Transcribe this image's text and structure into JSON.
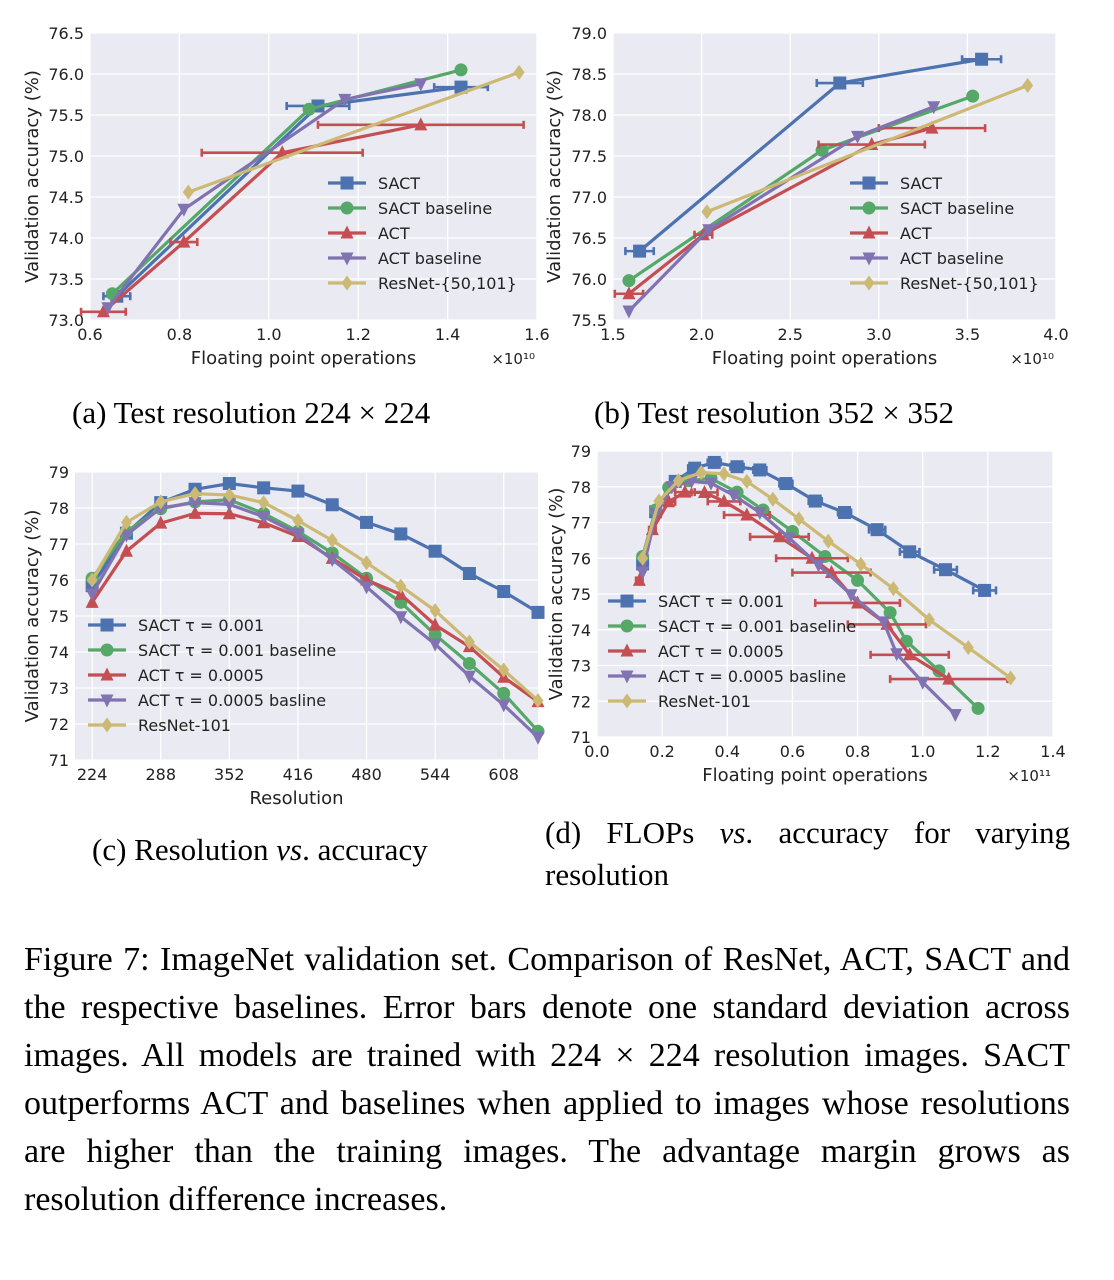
{
  "colors": {
    "SACT": "#4c72b0",
    "SACT baseline": "#55a868",
    "ACT": "#c44e52",
    "ACT baseline": "#8172b2",
    "ResNet": "#ccb974",
    "plot_bg": "#eaeaf2"
  },
  "captions": {
    "a": "(a) Test resolution 224 × 224",
    "b": "(b) Test resolution 352 × 352",
    "c_prefix": "(c) Resolution ",
    "c_vs": "vs",
    "c_suffix": ". accuracy",
    "d_prefix": "(d) FLOPs ",
    "d_vs": "vs",
    "d_suffix": ". accuracy for varying",
    "d_line2": "resolution"
  },
  "figure_caption": "Figure 7: ImageNet validation set. Comparison of ResNet, ACT, SACT and the respective baselines. Error bars denote one standard deviation across images. All models are trained with 224 × 224 resolution images. SACT outperforms ACT and baselines when applied to images whose resolutions are higher than the training images. The advantage margin grows as resolution difference increases.",
  "chart_data": [
    {
      "id": "a",
      "type": "line",
      "xlabel": "Floating point operations",
      "ylabel": "Validation accuracy (%)",
      "exponent_label": "×10¹⁰",
      "xlim": [
        0.6,
        1.6
      ],
      "ylim": [
        73.0,
        76.5
      ],
      "xticks": [
        0.6,
        0.8,
        1.0,
        1.2,
        1.4,
        1.6
      ],
      "xtick_labels": [
        "0.6",
        "0.8",
        "1.0",
        "1.2",
        "1.4",
        "1.6"
      ],
      "yticks": [
        73.0,
        73.5,
        74.0,
        74.5,
        75.0,
        75.5,
        76.0,
        76.5
      ],
      "ytick_labels": [
        "73.0",
        "73.5",
        "74.0",
        "74.5",
        "75.0",
        "75.5",
        "76.0",
        "76.5"
      ],
      "legend": "lower-right",
      "series": [
        {
          "name": "SACT",
          "marker": "square",
          "x": [
            0.66,
            1.11,
            1.43
          ],
          "y": [
            73.29,
            75.61,
            75.84
          ],
          "xerr": [
            0.03,
            0.07,
            0.06
          ]
        },
        {
          "name": "SACT baseline",
          "marker": "circle",
          "x": [
            0.65,
            1.09,
            1.43
          ],
          "y": [
            73.32,
            75.57,
            76.05
          ]
        },
        {
          "name": "ACT",
          "marker": "triangle-up",
          "x": [
            0.63,
            0.81,
            1.03,
            1.34
          ],
          "y": [
            73.1,
            73.95,
            75.04,
            75.38
          ],
          "xerr": [
            0.05,
            0.03,
            0.18,
            0.23
          ]
        },
        {
          "name": "ACT baseline",
          "marker": "triangle-down",
          "x": [
            0.64,
            0.81,
            1.17,
            1.34
          ],
          "y": [
            73.15,
            74.35,
            75.69,
            75.88
          ]
        },
        {
          "name": "ResNet-{50,101}",
          "marker": "diamond",
          "x": [
            0.82,
            1.56
          ],
          "y": [
            74.56,
            76.02
          ]
        }
      ]
    },
    {
      "id": "b",
      "type": "line",
      "xlabel": "Floating point operations",
      "ylabel": "Validation accuracy (%)",
      "exponent_label": "×10¹⁰",
      "xlim": [
        1.5,
        4.0
      ],
      "ylim": [
        75.5,
        79.0
      ],
      "xticks": [
        1.5,
        2.0,
        2.5,
        3.0,
        3.5,
        4.0
      ],
      "xtick_labels": [
        "1.5",
        "2.0",
        "2.5",
        "3.0",
        "3.5",
        "4.0"
      ],
      "yticks": [
        75.5,
        76.0,
        76.5,
        77.0,
        77.5,
        78.0,
        78.5,
        79.0
      ],
      "ytick_labels": [
        "75.5",
        "76.0",
        "76.5",
        "77.0",
        "77.5",
        "78.0",
        "78.5",
        "79.0"
      ],
      "legend": "lower-right",
      "series": [
        {
          "name": "SACT",
          "marker": "square",
          "x": [
            1.65,
            2.78,
            3.58
          ],
          "y": [
            76.34,
            78.39,
            78.68
          ],
          "xerr": [
            0.08,
            0.13,
            0.11
          ]
        },
        {
          "name": "SACT baseline",
          "marker": "circle",
          "x": [
            1.59,
            2.68,
            3.53
          ],
          "y": [
            75.98,
            77.57,
            78.23
          ]
        },
        {
          "name": "ACT",
          "marker": "triangle-up",
          "x": [
            1.59,
            2.01,
            2.96,
            3.3
          ],
          "y": [
            75.82,
            76.54,
            77.64,
            77.84
          ],
          "xerr": [
            0.08,
            0.05,
            0.3,
            0.3
          ]
        },
        {
          "name": "ACT baseline",
          "marker": "triangle-down",
          "x": [
            1.59,
            2.04,
            2.88,
            3.31
          ],
          "y": [
            75.61,
            76.6,
            77.74,
            78.1
          ]
        },
        {
          "name": "ResNet-{50,101}",
          "marker": "diamond",
          "x": [
            2.03,
            3.84
          ],
          "y": [
            76.82,
            78.36
          ]
        }
      ]
    },
    {
      "id": "c",
      "type": "line",
      "xlabel": "Resolution",
      "ylabel": "Validation accuracy (%)",
      "exponent_label": "",
      "xlim": [
        208,
        640
      ],
      "ylim": [
        71,
        79
      ],
      "xticks": [
        224,
        288,
        352,
        416,
        480,
        544,
        608
      ],
      "xtick_labels": [
        "224",
        "288",
        "352",
        "416",
        "480",
        "544",
        "608"
      ],
      "yticks": [
        71,
        72,
        73,
        74,
        75,
        76,
        77,
        78,
        79
      ],
      "ytick_labels": [
        "71",
        "72",
        "73",
        "74",
        "75",
        "76",
        "77",
        "78",
        "79"
      ],
      "legend": "lower-left",
      "series": [
        {
          "name": "SACT τ = 0.001",
          "marker": "square",
          "x": [
            224,
            256,
            288,
            320,
            352,
            384,
            416,
            448,
            480,
            512,
            544,
            576,
            608,
            640
          ],
          "y": [
            75.84,
            77.3,
            78.15,
            78.52,
            78.68,
            78.56,
            78.47,
            78.09,
            77.6,
            77.28,
            76.8,
            76.18,
            75.68,
            75.1
          ]
        },
        {
          "name": "SACT τ = 0.001 baseline",
          "marker": "circle",
          "x": [
            224,
            256,
            288,
            320,
            352,
            384,
            416,
            448,
            480,
            512,
            544,
            576,
            608,
            640
          ],
          "y": [
            76.05,
            77.35,
            77.98,
            78.17,
            78.23,
            77.85,
            77.35,
            76.75,
            76.05,
            75.38,
            74.48,
            73.68,
            72.85,
            71.8
          ]
        },
        {
          "name": "ACT τ = 0.0005",
          "marker": "triangle-up",
          "x": [
            224,
            256,
            288,
            320,
            352,
            384,
            416,
            448,
            480,
            512,
            544,
            576,
            608,
            640
          ],
          "y": [
            75.38,
            76.8,
            77.58,
            77.85,
            77.84,
            77.59,
            77.21,
            76.6,
            76.0,
            75.6,
            74.75,
            74.15,
            73.3,
            72.62
          ]
        },
        {
          "name": "ACT τ = 0.0005 basline",
          "marker": "triangle-down",
          "x": [
            224,
            256,
            288,
            320,
            352,
            384,
            416,
            448,
            480,
            512,
            544,
            576,
            608,
            640
          ],
          "y": [
            75.61,
            77.25,
            78.0,
            78.15,
            78.1,
            77.76,
            77.28,
            76.57,
            75.81,
            74.98,
            74.22,
            73.33,
            72.53,
            71.63
          ]
        },
        {
          "name": "ResNet-101",
          "marker": "diamond",
          "x": [
            224,
            256,
            288,
            320,
            352,
            384,
            416,
            448,
            480,
            512,
            544,
            576,
            608,
            640
          ],
          "y": [
            76.0,
            77.6,
            78.17,
            78.4,
            78.36,
            78.15,
            77.65,
            77.1,
            76.48,
            75.83,
            75.15,
            74.28,
            73.5,
            72.65
          ]
        }
      ]
    },
    {
      "id": "d",
      "type": "line",
      "xlabel": "Floating point operations",
      "ylabel": "Validation accuracy (%)",
      "exponent_label": "×10¹¹",
      "xlim": [
        0.0,
        1.4
      ],
      "ylim": [
        71,
        79
      ],
      "xticks": [
        0.0,
        0.2,
        0.4,
        0.6,
        0.8,
        1.0,
        1.2,
        1.4
      ],
      "xtick_labels": [
        "0.0",
        "0.2",
        "0.4",
        "0.6",
        "0.8",
        "1.0",
        "1.2",
        "1.4"
      ],
      "yticks": [
        71,
        72,
        73,
        74,
        75,
        76,
        77,
        78,
        79
      ],
      "ytick_labels": [
        "71",
        "72",
        "73",
        "74",
        "75",
        "76",
        "77",
        "78",
        "79"
      ],
      "legend": "lower-left",
      "series": [
        {
          "name": "SACT τ = 0.001",
          "marker": "square",
          "x": [
            0.14,
            0.18,
            0.24,
            0.3,
            0.36,
            0.43,
            0.5,
            0.58,
            0.67,
            0.76,
            0.86,
            0.96,
            1.07,
            1.19
          ],
          "y": [
            75.84,
            77.3,
            78.15,
            78.52,
            78.68,
            78.56,
            78.47,
            78.09,
            77.6,
            77.28,
            76.8,
            76.18,
            75.68,
            75.1
          ],
          "xerr": [
            0.01,
            0.01,
            0.015,
            0.02,
            0.02,
            0.02,
            0.02,
            0.02,
            0.02,
            0.02,
            0.025,
            0.03,
            0.035,
            0.035
          ]
        },
        {
          "name": "SACT τ = 0.001 baseline",
          "marker": "circle",
          "x": [
            0.14,
            0.18,
            0.22,
            0.28,
            0.35,
            0.43,
            0.51,
            0.6,
            0.7,
            0.8,
            0.9,
            0.95,
            1.05,
            1.17
          ],
          "y": [
            76.05,
            77.35,
            77.98,
            78.17,
            78.23,
            77.85,
            77.35,
            76.75,
            76.05,
            75.38,
            74.48,
            73.68,
            72.85,
            71.8
          ]
        },
        {
          "name": "ACT τ = 0.0005",
          "marker": "triangle-up",
          "x": [
            0.13,
            0.17,
            0.22,
            0.27,
            0.33,
            0.39,
            0.46,
            0.56,
            0.66,
            0.72,
            0.8,
            0.89,
            0.96,
            1.08
          ],
          "y": [
            75.38,
            76.8,
            77.58,
            77.85,
            77.84,
            77.59,
            77.21,
            76.6,
            76.0,
            75.6,
            74.75,
            74.15,
            73.3,
            72.62
          ],
          "xerr": [
            0.01,
            0.01,
            0.02,
            0.03,
            0.04,
            0.05,
            0.07,
            0.09,
            0.11,
            0.12,
            0.13,
            0.12,
            0.12,
            0.18
          ]
        },
        {
          "name": "ACT τ = 0.0005 basline",
          "marker": "triangle-down",
          "x": [
            0.14,
            0.18,
            0.23,
            0.29,
            0.35,
            0.42,
            0.5,
            0.59,
            0.68,
            0.78,
            0.88,
            0.92,
            1.0,
            1.1
          ],
          "y": [
            75.61,
            77.25,
            78.0,
            78.15,
            78.1,
            77.76,
            77.28,
            76.57,
            75.81,
            74.98,
            74.22,
            73.33,
            72.53,
            71.63
          ]
        },
        {
          "name": "ResNet-101",
          "marker": "diamond",
          "x": [
            0.14,
            0.19,
            0.25,
            0.32,
            0.39,
            0.46,
            0.54,
            0.62,
            0.71,
            0.81,
            0.91,
            1.02,
            1.14,
            1.27
          ],
          "y": [
            76.0,
            77.6,
            78.17,
            78.4,
            78.36,
            78.15,
            77.65,
            77.1,
            76.48,
            75.83,
            75.15,
            74.28,
            73.5,
            72.65
          ]
        }
      ]
    }
  ]
}
